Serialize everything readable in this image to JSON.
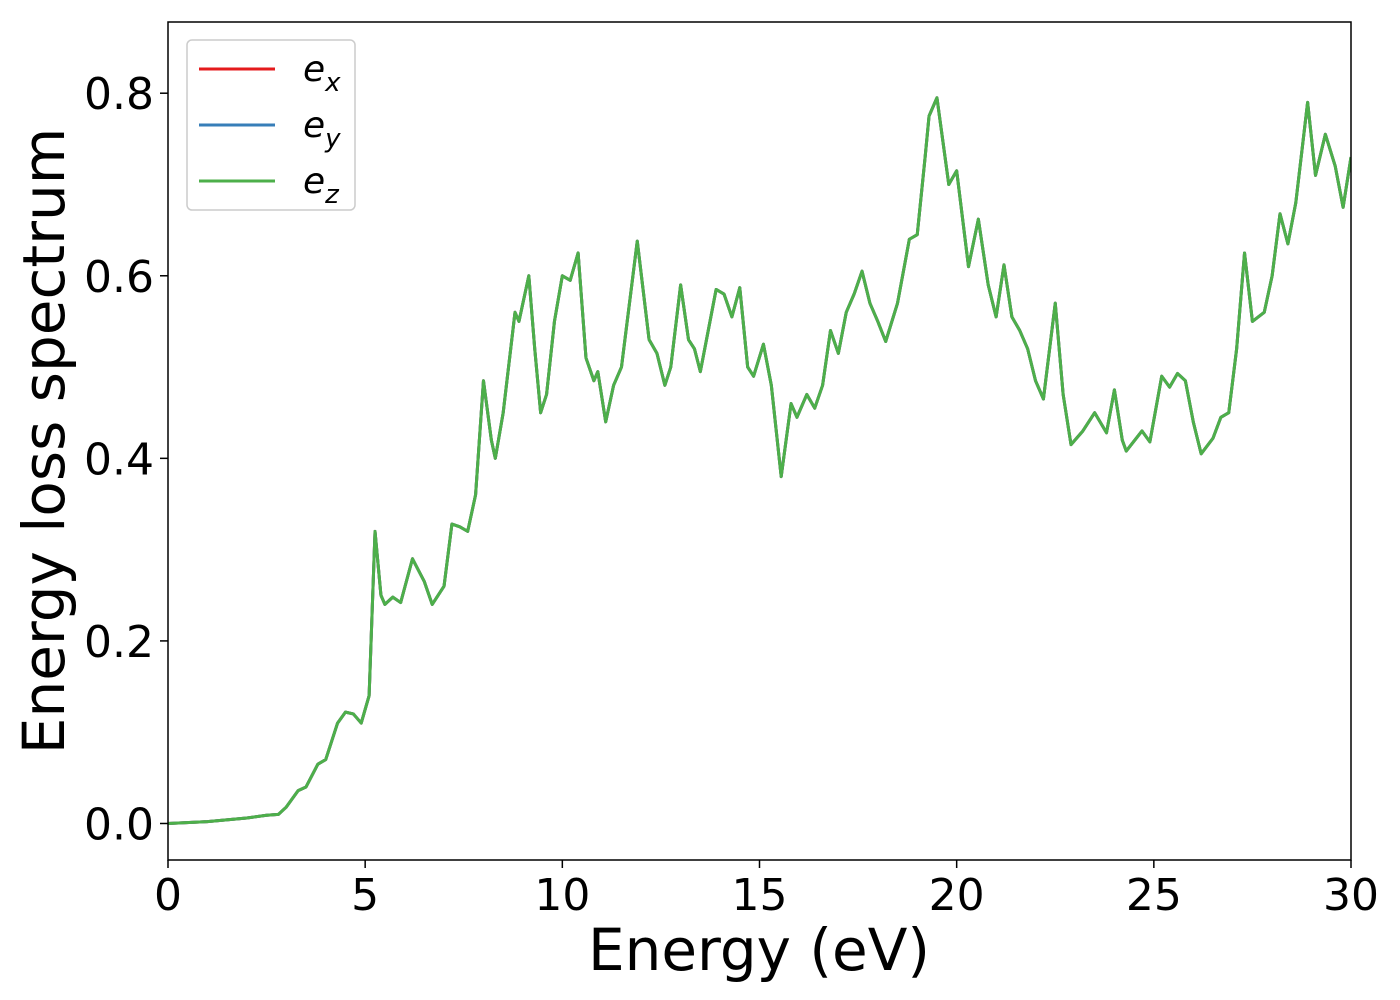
{
  "chart_data": {
    "type": "line",
    "xlabel": "Energy (eV)",
    "ylabel": "Energy loss spectrum",
    "x": [
      0,
      1,
      2,
      2.5,
      2.8,
      3.0,
      3.3,
      3.5,
      3.8,
      4.0,
      4.3,
      4.5,
      4.7,
      4.9,
      5.1,
      5.25,
      5.4,
      5.5,
      5.7,
      5.9,
      6.2,
      6.5,
      6.7,
      7.0,
      7.2,
      7.4,
      7.6,
      7.8,
      8.0,
      8.2,
      8.3,
      8.5,
      8.8,
      8.9,
      9.15,
      9.3,
      9.45,
      9.6,
      9.8,
      10.0,
      10.2,
      10.4,
      10.6,
      10.8,
      10.9,
      11.1,
      11.3,
      11.5,
      11.9,
      12.2,
      12.4,
      12.6,
      12.75,
      13.0,
      13.2,
      13.35,
      13.5,
      13.7,
      13.9,
      14.1,
      14.3,
      14.5,
      14.7,
      14.85,
      15.1,
      15.3,
      15.55,
      15.8,
      15.95,
      16.2,
      16.4,
      16.6,
      16.8,
      17.0,
      17.2,
      17.4,
      17.6,
      17.8,
      18.0,
      18.2,
      18.5,
      18.8,
      19.0,
      19.2,
      19.3,
      19.5,
      19.8,
      20.0,
      20.3,
      20.55,
      20.8,
      21.0,
      21.2,
      21.4,
      21.6,
      21.8,
      22.0,
      22.2,
      22.5,
      22.7,
      22.9,
      23.2,
      23.5,
      23.8,
      24.0,
      24.2,
      24.3,
      24.7,
      24.9,
      25.2,
      25.4,
      25.6,
      25.8,
      26.0,
      26.2,
      26.5,
      26.7,
      26.9,
      27.1,
      27.3,
      27.5,
      27.8,
      28.0,
      28.2,
      28.4,
      28.6,
      28.9,
      29.1,
      29.35,
      29.6,
      29.8,
      30.0
    ],
    "series": [
      {
        "name": "e_x",
        "color": "#e41a1c",
        "values": [
          0,
          0.002,
          0.006,
          0.009,
          0.01,
          0.018,
          0.036,
          0.04,
          0.065,
          0.07,
          0.11,
          0.122,
          0.12,
          0.11,
          0.14,
          0.32,
          0.25,
          0.24,
          0.248,
          0.242,
          0.29,
          0.265,
          0.24,
          0.26,
          0.328,
          0.325,
          0.32,
          0.36,
          0.485,
          0.42,
          0.4,
          0.45,
          0.56,
          0.55,
          0.6,
          0.52,
          0.45,
          0.47,
          0.55,
          0.6,
          0.595,
          0.625,
          0.51,
          0.485,
          0.495,
          0.44,
          0.48,
          0.5,
          0.638,
          0.53,
          0.515,
          0.48,
          0.5,
          0.59,
          0.53,
          0.52,
          0.495,
          0.54,
          0.585,
          0.58,
          0.555,
          0.587,
          0.5,
          0.49,
          0.525,
          0.48,
          0.38,
          0.46,
          0.445,
          0.47,
          0.455,
          0.48,
          0.54,
          0.515,
          0.56,
          0.58,
          0.605,
          0.57,
          0.55,
          0.528,
          0.57,
          0.64,
          0.645,
          0.73,
          0.775,
          0.795,
          0.7,
          0.715,
          0.61,
          0.662,
          0.59,
          0.555,
          0.612,
          0.555,
          0.54,
          0.52,
          0.485,
          0.465,
          0.57,
          0.47,
          0.415,
          0.43,
          0.45,
          0.428,
          0.475,
          0.42,
          0.408,
          0.43,
          0.418,
          0.49,
          0.478,
          0.493,
          0.485,
          0.44,
          0.405,
          0.422,
          0.445,
          0.45,
          0.52,
          0.625,
          0.55,
          0.56,
          0.6,
          0.668,
          0.635,
          0.68,
          0.79,
          0.71,
          0.755,
          0.72,
          0.675,
          0.73
        ]
      },
      {
        "name": "e_y",
        "color": "#377eb8",
        "values": [
          0,
          0.002,
          0.006,
          0.009,
          0.01,
          0.018,
          0.036,
          0.04,
          0.065,
          0.07,
          0.11,
          0.122,
          0.12,
          0.11,
          0.14,
          0.32,
          0.25,
          0.24,
          0.248,
          0.242,
          0.29,
          0.265,
          0.24,
          0.26,
          0.328,
          0.325,
          0.32,
          0.36,
          0.485,
          0.42,
          0.4,
          0.45,
          0.56,
          0.55,
          0.6,
          0.52,
          0.45,
          0.47,
          0.55,
          0.6,
          0.595,
          0.625,
          0.51,
          0.485,
          0.495,
          0.44,
          0.48,
          0.5,
          0.638,
          0.53,
          0.515,
          0.48,
          0.5,
          0.59,
          0.53,
          0.52,
          0.495,
          0.54,
          0.585,
          0.58,
          0.555,
          0.587,
          0.5,
          0.49,
          0.525,
          0.48,
          0.38,
          0.46,
          0.445,
          0.47,
          0.455,
          0.48,
          0.54,
          0.515,
          0.56,
          0.58,
          0.605,
          0.57,
          0.55,
          0.528,
          0.57,
          0.64,
          0.645,
          0.73,
          0.775,
          0.795,
          0.7,
          0.715,
          0.61,
          0.662,
          0.59,
          0.555,
          0.612,
          0.555,
          0.54,
          0.52,
          0.485,
          0.465,
          0.57,
          0.47,
          0.415,
          0.43,
          0.45,
          0.428,
          0.475,
          0.42,
          0.408,
          0.43,
          0.418,
          0.49,
          0.478,
          0.493,
          0.485,
          0.44,
          0.405,
          0.422,
          0.445,
          0.45,
          0.52,
          0.625,
          0.55,
          0.56,
          0.6,
          0.668,
          0.635,
          0.68,
          0.79,
          0.71,
          0.755,
          0.72,
          0.675,
          0.73
        ]
      },
      {
        "name": "e_z",
        "color": "#4daf4a",
        "values": [
          0,
          0.002,
          0.006,
          0.009,
          0.01,
          0.018,
          0.036,
          0.04,
          0.065,
          0.07,
          0.11,
          0.122,
          0.12,
          0.11,
          0.14,
          0.32,
          0.25,
          0.24,
          0.248,
          0.242,
          0.29,
          0.265,
          0.24,
          0.26,
          0.328,
          0.325,
          0.32,
          0.36,
          0.485,
          0.42,
          0.4,
          0.45,
          0.56,
          0.55,
          0.6,
          0.52,
          0.45,
          0.47,
          0.55,
          0.6,
          0.595,
          0.625,
          0.51,
          0.485,
          0.495,
          0.44,
          0.48,
          0.5,
          0.638,
          0.53,
          0.515,
          0.48,
          0.5,
          0.59,
          0.53,
          0.52,
          0.495,
          0.54,
          0.585,
          0.58,
          0.555,
          0.587,
          0.5,
          0.49,
          0.525,
          0.48,
          0.38,
          0.46,
          0.445,
          0.47,
          0.455,
          0.48,
          0.54,
          0.515,
          0.56,
          0.58,
          0.605,
          0.57,
          0.55,
          0.528,
          0.57,
          0.64,
          0.645,
          0.73,
          0.775,
          0.795,
          0.7,
          0.715,
          0.61,
          0.662,
          0.59,
          0.555,
          0.612,
          0.555,
          0.54,
          0.52,
          0.485,
          0.465,
          0.57,
          0.47,
          0.415,
          0.43,
          0.45,
          0.428,
          0.475,
          0.42,
          0.408,
          0.43,
          0.418,
          0.49,
          0.478,
          0.493,
          0.485,
          0.44,
          0.405,
          0.422,
          0.445,
          0.45,
          0.52,
          0.625,
          0.55,
          0.56,
          0.6,
          0.668,
          0.635,
          0.68,
          0.79,
          0.71,
          0.755,
          0.72,
          0.675,
          0.73
        ]
      }
    ],
    "xlim": [
      0,
      30
    ],
    "xticks": [
      0,
      5,
      10,
      15,
      20,
      25,
      30
    ],
    "ylim": [
      -0.04,
      0.878
    ],
    "yticks": [
      {
        "value": 0,
        "label": "0.0"
      },
      0.2,
      0.4,
      0.6,
      0.8
    ],
    "legend": "upper left",
    "grid": false
  }
}
